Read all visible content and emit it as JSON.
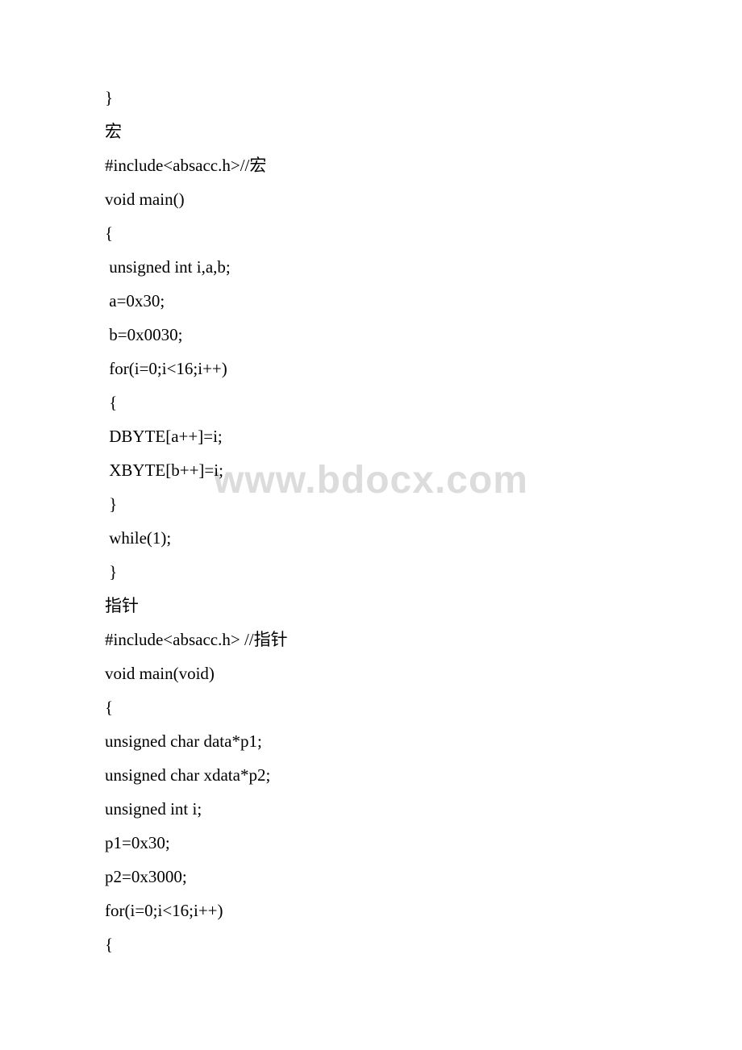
{
  "watermark": "www.bdocx.com",
  "lines": [
    "}",
    "宏",
    "#include<absacc.h>//宏",
    "void main()",
    "{",
    " unsigned int i,a,b;",
    " a=0x30;",
    " b=0x0030;",
    " for(i=0;i<16;i++)",
    " {",
    " DBYTE[a++]=i;",
    " XBYTE[b++]=i;",
    " }",
    " while(1);",
    " }",
    "指针",
    "#include<absacc.h> //指针",
    "void main(void)",
    "{",
    "unsigned char data*p1;",
    "unsigned char xdata*p2;",
    "unsigned int i;",
    "p1=0x30;",
    "p2=0x3000;",
    "for(i=0;i<16;i++)",
    "{"
  ]
}
